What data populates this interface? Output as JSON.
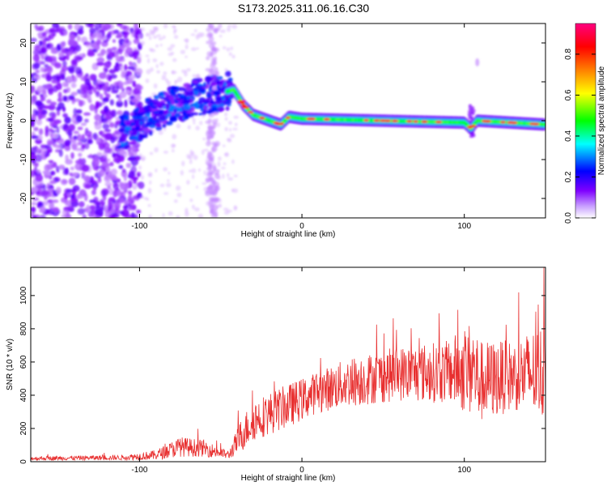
{
  "title": "S173.2025.311.06.16.C30",
  "chart_data": [
    {
      "type": "heatmap",
      "title": "S173.2025.311.06.16.C30",
      "xlabel": "Height of straight line (km)",
      "ylabel": "Frequency (Hz)",
      "xlim": [
        -167,
        150
      ],
      "ylim": [
        -25,
        25
      ],
      "xticks": [
        -100,
        0,
        100
      ],
      "yticks": [
        -20,
        -10,
        0,
        10,
        20
      ],
      "colorbar": {
        "label": "Normalized spectral amplitude",
        "range": [
          0,
          0.95
        ],
        "ticks": [
          "0.0",
          "0.2",
          "0.4",
          "0.6",
          "0.8"
        ],
        "tick_values": [
          0.0,
          0.2,
          0.4,
          0.6,
          0.8
        ],
        "colors": [
          "#ffffff",
          "#7f00ff",
          "#0000ff",
          "#00ffff",
          "#00ff00",
          "#ffff00",
          "#ff8000",
          "#ff0000",
          "#ff0080"
        ]
      },
      "ridge": [
        {
          "x": -110,
          "f": -3
        },
        {
          "x": -95,
          "f": 1
        },
        {
          "x": -80,
          "f": 4
        },
        {
          "x": -65,
          "f": 6
        },
        {
          "x": -50,
          "f": 7
        },
        {
          "x": -42,
          "f": 8
        },
        {
          "x": -36,
          "f": 4
        },
        {
          "x": -30,
          "f": 1.5
        },
        {
          "x": -20,
          "f": 0
        },
        {
          "x": -13,
          "f": -1
        },
        {
          "x": -8,
          "f": 1
        },
        {
          "x": 0,
          "f": 0.5
        },
        {
          "x": 50,
          "f": 0
        },
        {
          "x": 100,
          "f": -0.5
        },
        {
          "x": 104,
          "f": -2
        },
        {
          "x": 108,
          "f": 0
        },
        {
          "x": 150,
          "f": -1
        }
      ]
    },
    {
      "type": "line",
      "xlabel": "Height of straight line (km)",
      "ylabel": "SNR (10 * v/v)",
      "xlim": [
        -167,
        150
      ],
      "ylim": [
        0,
        1170
      ],
      "xticks": [
        -100,
        0,
        100
      ],
      "yticks": [
        0,
        200,
        400,
        600,
        800,
        1000
      ],
      "series": [
        {
          "name": "SNR",
          "color": "#e83030",
          "envelope": [
            {
              "x": -167,
              "base": 20,
              "amp": 25
            },
            {
              "x": -110,
              "base": 25,
              "amp": 30
            },
            {
              "x": -90,
              "base": 40,
              "amp": 60
            },
            {
              "x": -75,
              "base": 90,
              "amp": 120
            },
            {
              "x": -60,
              "base": 80,
              "amp": 100
            },
            {
              "x": -45,
              "base": 40,
              "amp": 50
            },
            {
              "x": -38,
              "base": 150,
              "amp": 200
            },
            {
              "x": -30,
              "base": 250,
              "amp": 250
            },
            {
              "x": -10,
              "base": 330,
              "amp": 260
            },
            {
              "x": 10,
              "base": 420,
              "amp": 250
            },
            {
              "x": 30,
              "base": 480,
              "amp": 300
            },
            {
              "x": 60,
              "base": 530,
              "amp": 330
            },
            {
              "x": 90,
              "base": 540,
              "amp": 380
            },
            {
              "x": 105,
              "base": 560,
              "amp": 600
            },
            {
              "x": 110,
              "base": 480,
              "amp": 500
            },
            {
              "x": 130,
              "base": 520,
              "amp": 420
            },
            {
              "x": 150,
              "base": 540,
              "amp": 600
            }
          ]
        }
      ]
    }
  ]
}
